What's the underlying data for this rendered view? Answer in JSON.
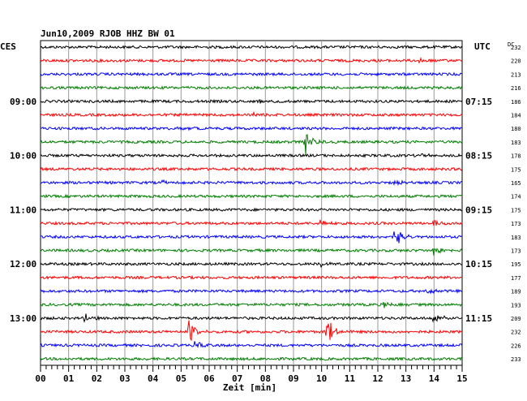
{
  "chart_data": {
    "type": "line",
    "title": "Jun10,2009  RJOB HHZ BW 01",
    "left_label": "CES",
    "right_label": "UTC",
    "dc_label": "DC",
    "xlabel": "Zeit [min]",
    "x_ticks": [
      "00",
      "01",
      "02",
      "03",
      "04",
      "05",
      "06",
      "07",
      "08",
      "09",
      "10",
      "11",
      "12",
      "13",
      "14",
      "15"
    ],
    "xlim": [
      0,
      15
    ],
    "grid": "vertical lines every minute",
    "trace_colors": [
      "#000000",
      "#ff0000",
      "#0000ff",
      "#007f00"
    ],
    "left_hours": [
      {
        "label": "09:00",
        "trace": 4
      },
      {
        "label": "10:00",
        "trace": 8
      },
      {
        "label": "11:00",
        "trace": 12
      },
      {
        "label": "12:00",
        "trace": 16
      },
      {
        "label": "13:00",
        "trace": 20
      }
    ],
    "right_hours": [
      {
        "label": "07:15",
        "trace": 4
      },
      {
        "label": "08:15",
        "trace": 8
      },
      {
        "label": "09:15",
        "trace": 12
      },
      {
        "label": "10:15",
        "trace": 16
      },
      {
        "label": "11:15",
        "trace": 20
      }
    ],
    "dc_values": [
      "232",
      "220",
      "213",
      "216",
      "186",
      "184",
      "180",
      "183",
      "178",
      "175",
      "165",
      "174",
      "175",
      "173",
      "183",
      "173",
      "195",
      "177",
      "189",
      "193",
      "209",
      "232",
      "226",
      "233"
    ],
    "events": [
      {
        "trace": 1,
        "minute": 13.5,
        "amp": 1.0
      },
      {
        "trace": 4,
        "minute": 7.8,
        "amp": 0.7
      },
      {
        "trace": 5,
        "minute": 7.6,
        "amp": 0.7
      },
      {
        "trace": 6,
        "minute": 4.9,
        "amp": 0.6
      },
      {
        "trace": 7,
        "minute": 9.4,
        "amp": 4.5
      },
      {
        "trace": 8,
        "minute": 13.5,
        "amp": 0.7
      },
      {
        "trace": 10,
        "minute": 4.3,
        "amp": 0.7
      },
      {
        "trace": 10,
        "minute": 12.6,
        "amp": 0.8
      },
      {
        "trace": 13,
        "minute": 10.0,
        "amp": 1.0
      },
      {
        "trace": 13,
        "minute": 14.0,
        "amp": 1.0
      },
      {
        "trace": 14,
        "minute": 12.6,
        "amp": 4.5
      },
      {
        "trace": 15,
        "minute": 14.0,
        "amp": 1.4
      },
      {
        "trace": 16,
        "minute": 10.0,
        "amp": 0.9
      },
      {
        "trace": 18,
        "minute": 13.8,
        "amp": 0.7
      },
      {
        "trace": 19,
        "minute": 12.2,
        "amp": 1.4
      },
      {
        "trace": 20,
        "minute": 1.6,
        "amp": 1.2
      },
      {
        "trace": 20,
        "minute": 14.0,
        "amp": 2.0
      },
      {
        "trace": 21,
        "minute": 5.3,
        "amp": 3.5
      },
      {
        "trace": 21,
        "minute": 10.2,
        "amp": 4.5
      },
      {
        "trace": 22,
        "minute": 5.5,
        "amp": 1.4
      }
    ]
  }
}
